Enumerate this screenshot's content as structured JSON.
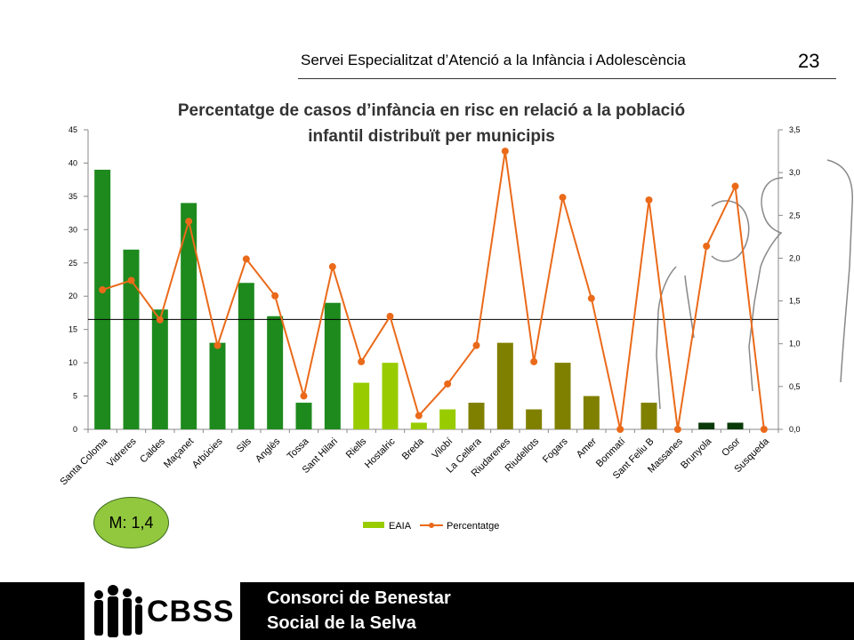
{
  "header": {
    "title": "Servei Especialitzat d’Atenció a la Infància i Adolescència",
    "page_number": "23"
  },
  "mean_badge": "M: 1,4",
  "footer": {
    "logo_text": "CBSS",
    "line1": "Consorci de Benestar",
    "line2": "Social de la Selva"
  },
  "colors": {
    "eaia_dark_green": "#1e8a1e",
    "eaia_light_green": "#99cc00",
    "eaia_olive": "#808000",
    "eaia_very_dark": "#0a3a0a",
    "percentatge_line": "#ea6a1a"
  },
  "chart_data": {
    "type": "bar+line",
    "title": "Percentatge de casos d’infància en risc en relació a la població infantil distribuït per municipis",
    "categories": [
      "Santa Coloma",
      "Vidreres",
      "Caldes",
      "Maçanet",
      "Arbúcies",
      "Sils",
      "Anglès",
      "Tossa",
      "Sant Hilari",
      "Riells",
      "Hostalric",
      "Breda",
      "Vilobí",
      "La Cellera",
      "Riudarenes",
      "Riudellots",
      "Fogars",
      "Amer",
      "Bonmatí",
      "Sant Feliu B",
      "Massanes",
      "Brunyola",
      "Osor",
      "Susqueda"
    ],
    "series": [
      {
        "name": "EAIA",
        "type": "bar",
        "axis": "left",
        "values": [
          39,
          27,
          18,
          34,
          13,
          22,
          17,
          4,
          19,
          7,
          10,
          1,
          3,
          4,
          13,
          3,
          10,
          5,
          0,
          4,
          0,
          1,
          1,
          0
        ],
        "color_groups": [
          "dark",
          "dark",
          "dark",
          "dark",
          "dark",
          "dark",
          "dark",
          "dark",
          "dark",
          "light",
          "light",
          "light",
          "light",
          "olive",
          "olive",
          "olive",
          "olive",
          "olive",
          "olive",
          "olive",
          "olive",
          "very_dark",
          "very_dark",
          "olive"
        ]
      },
      {
        "name": "Percentatge",
        "type": "line",
        "axis": "right",
        "values": [
          1.63,
          1.74,
          1.28,
          2.43,
          0.98,
          1.99,
          1.56,
          0.39,
          1.9,
          0.79,
          1.32,
          0.16,
          0.53,
          0.98,
          3.25,
          0.79,
          2.71,
          1.53,
          0.0,
          2.68,
          0.0,
          2.14,
          2.84,
          0.0
        ]
      }
    ],
    "y_left": {
      "ylim": [
        0,
        45
      ],
      "ticks": [
        "0",
        "5",
        "10",
        "15",
        "20",
        "25",
        "30",
        "35",
        "40",
        "45"
      ]
    },
    "y_right": {
      "ylim": [
        0,
        3.5
      ],
      "ticks": [
        "0,0",
        "0,5",
        "1,0",
        "1,5",
        "2,0",
        "2,5",
        "3,0",
        "3,5"
      ]
    },
    "mean_line_value_left_axis": 16.5,
    "legend": {
      "position": "bottom",
      "items": [
        "EAIA",
        "Percentatge"
      ]
    }
  }
}
